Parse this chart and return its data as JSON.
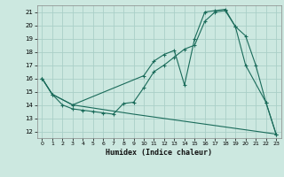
{
  "xlabel": "Humidex (Indice chaleur)",
  "bg_color": "#cce8e0",
  "grid_color": "#aacfc8",
  "line_color": "#1a6b5a",
  "xlim": [
    -0.5,
    23.5
  ],
  "ylim": [
    11.5,
    21.5
  ],
  "yticks": [
    12,
    13,
    14,
    15,
    16,
    17,
    18,
    19,
    20,
    21
  ],
  "xticks": [
    0,
    1,
    2,
    3,
    4,
    5,
    6,
    7,
    8,
    9,
    10,
    11,
    12,
    13,
    14,
    15,
    16,
    17,
    18,
    19,
    20,
    21,
    22,
    23
  ],
  "series1_x": [
    0,
    1,
    2,
    3,
    4,
    5,
    6,
    7,
    8,
    9,
    10,
    11,
    12,
    13,
    14,
    15,
    16,
    17,
    18,
    19,
    20,
    21,
    22,
    23
  ],
  "series1_y": [
    16.0,
    14.8,
    14.0,
    13.7,
    13.6,
    13.5,
    13.4,
    13.3,
    14.1,
    14.2,
    15.3,
    16.5,
    17.0,
    17.6,
    18.2,
    18.5,
    20.3,
    21.0,
    21.1,
    19.9,
    19.2,
    17.0,
    14.2,
    11.8
  ],
  "series2_x": [
    0,
    1,
    3,
    10,
    11,
    12,
    13,
    14,
    15,
    16,
    17,
    18,
    19,
    20,
    22,
    23
  ],
  "series2_y": [
    16.0,
    14.8,
    14.0,
    16.2,
    17.3,
    17.8,
    18.1,
    15.5,
    19.0,
    21.0,
    21.1,
    21.2,
    19.9,
    17.0,
    14.2,
    11.8
  ],
  "series3_x": [
    0,
    1,
    3,
    9,
    23
  ],
  "series3_y": [
    16.0,
    14.8,
    14.0,
    13.3,
    11.8
  ]
}
